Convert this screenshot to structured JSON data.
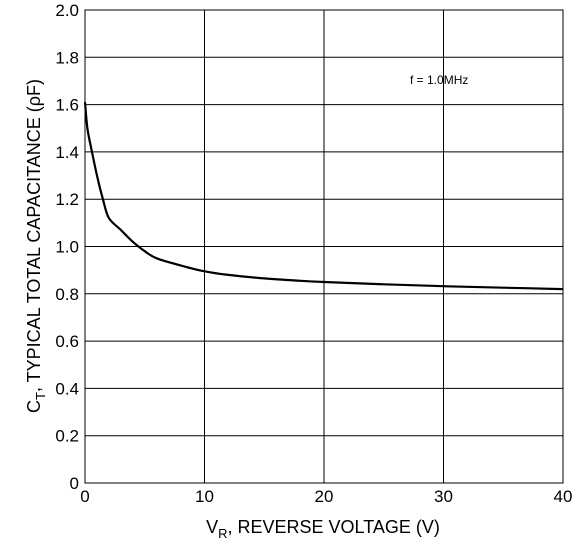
{
  "chart_data": {
    "type": "line",
    "title": "",
    "xlabel": {
      "main": "V",
      "sub": "R",
      "rest": ", REVERSE VOLTAGE (V)"
    },
    "ylabel": {
      "main": "C",
      "sub": "T",
      "rest": ", TYPICAL TOTAL CAPACITANCE (ρF)"
    },
    "xlim": [
      0,
      40
    ],
    "ylim": [
      0,
      2.0
    ],
    "xticks": [
      0,
      10,
      20,
      30,
      40
    ],
    "xtick_labels": [
      "0",
      "10",
      "20",
      "30",
      "40"
    ],
    "yticks": [
      0,
      0.2,
      0.4,
      0.6,
      0.8,
      1.0,
      1.2,
      1.4,
      1.6,
      1.8,
      2.0
    ],
    "ytick_labels": [
      "0",
      "0.2",
      "0.4",
      "0.6",
      "0.8",
      "1.0",
      "1.2",
      "1.4",
      "1.6",
      "1.8",
      "2.0"
    ],
    "grid": true,
    "annotation": "f = 1.0MHz",
    "series": [
      {
        "x": [
          0,
          0.2,
          0.5,
          1.0,
          1.5,
          2.0,
          3.0,
          4.0,
          5.0,
          6.0,
          8.0,
          10.0,
          12.0,
          15.0,
          18.0,
          20.0,
          25.0,
          30.0,
          35.0,
          40.0
        ],
        "y": [
          1.61,
          1.5,
          1.42,
          1.3,
          1.2,
          1.12,
          1.07,
          1.02,
          0.98,
          0.95,
          0.92,
          0.895,
          0.88,
          0.865,
          0.855,
          0.85,
          0.84,
          0.832,
          0.826,
          0.82
        ]
      }
    ]
  },
  "colors": {
    "line": "#000000",
    "grid": "#000000",
    "background": "#ffffff"
  }
}
